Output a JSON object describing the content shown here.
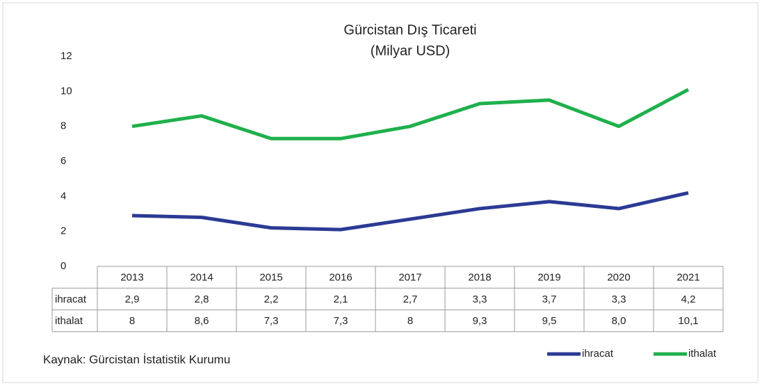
{
  "chart_data": {
    "type": "line",
    "title": "Gürcistan Dış Ticareti",
    "subtitle": "(Milyar USD)",
    "source": "Kaynak: Gürcistan İstatistik Kurumu",
    "categories": [
      "2013",
      "2014",
      "2015",
      "2016",
      "2017",
      "2018",
      "2019",
      "2020",
      "2021"
    ],
    "series": [
      {
        "name": "ihracat",
        "color": "#2b3a94",
        "values": [
          2.9,
          2.8,
          2.2,
          2.1,
          2.7,
          3.3,
          3.7,
          3.3,
          4.2
        ],
        "value_labels": [
          "2,9",
          "2,8",
          "2,2",
          "2,1",
          "2,7",
          "3,3",
          "3,7",
          "3,3",
          "4,2"
        ]
      },
      {
        "name": "ithalat",
        "color": "#1fb04c",
        "values": [
          8,
          8.6,
          7.3,
          7.3,
          8,
          9.3,
          9.5,
          8.0,
          10.1
        ],
        "value_labels": [
          "8",
          "8,6",
          "7,3",
          "7,3",
          "8",
          "9,3",
          "9,5",
          "8,0",
          "10,1"
        ]
      }
    ],
    "ylim": [
      0,
      12
    ],
    "yticks": [
      0,
      2,
      4,
      6,
      8,
      10,
      12
    ],
    "grid": false,
    "legend": "bottom-right"
  }
}
